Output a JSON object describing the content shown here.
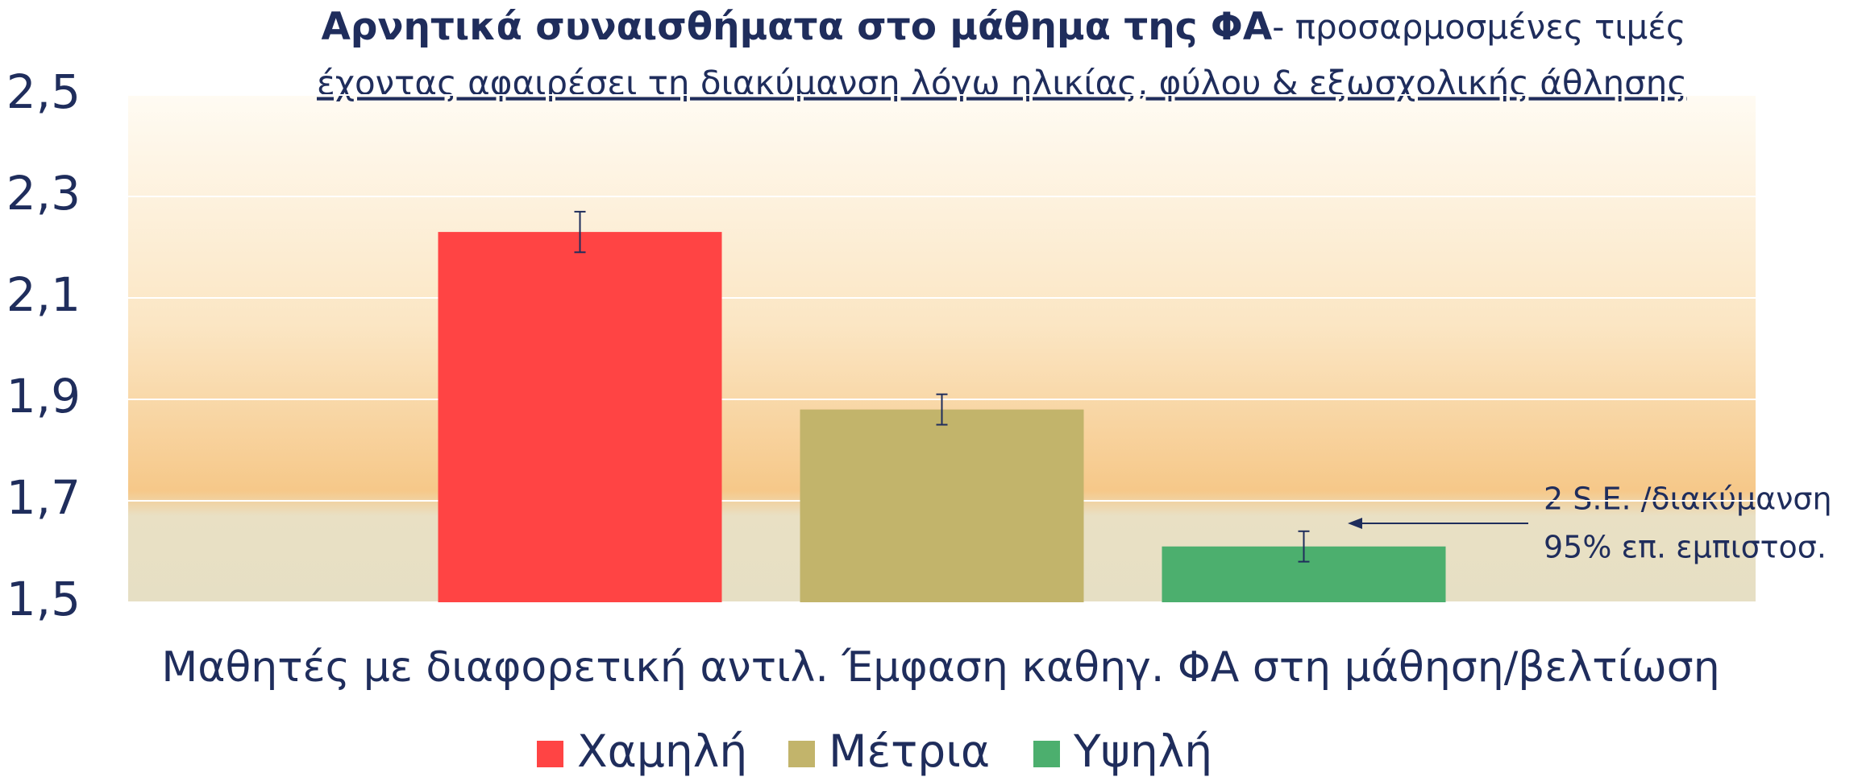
{
  "chart_data": {
    "type": "bar",
    "title": "Αρνητικά συναισθήματα στο μάθημα της ΦΑ",
    "subtitle": "- προσαρμοσμένες τιμές",
    "subtitle_line2": "έχοντας αφαιρέσει τη διακύμανση λόγω ηλικίας, φύλου & εξωσχολικής άθλησης",
    "x_label": "Μαθητές με διαφορετική αντιλ. Έμφαση καθηγ. ΦΑ στη μάθηση/βελτίωση",
    "annotation": [
      "2 S.E. /διακύμανση",
      "95% επ. εμπιστοσ."
    ],
    "categories": [
      null
    ],
    "series": [
      {
        "name": "Χαμηλή",
        "color": "#ff4444",
        "values": [
          2.23
        ],
        "errors": [
          0.04
        ]
      },
      {
        "name": "Μέτρια",
        "color": "#c2b46b",
        "values": [
          1.88
        ],
        "errors": [
          0.03
        ]
      },
      {
        "name": "Υψηλή",
        "color": "#4caf6e",
        "values": [
          1.61
        ],
        "errors": [
          0.03
        ]
      }
    ],
    "ylim": [
      1.5,
      2.5
    ],
    "yticks": [
      {
        "value": 1.5,
        "label": "1,5"
      },
      {
        "value": 1.7,
        "label": "1,7"
      },
      {
        "value": 1.9,
        "label": "1,9"
      },
      {
        "value": 2.1,
        "label": "2,1"
      },
      {
        "value": 2.3,
        "label": "2,3"
      },
      {
        "value": 2.5,
        "label": "2,5"
      }
    ],
    "grid": true,
    "legend": "bottom"
  }
}
